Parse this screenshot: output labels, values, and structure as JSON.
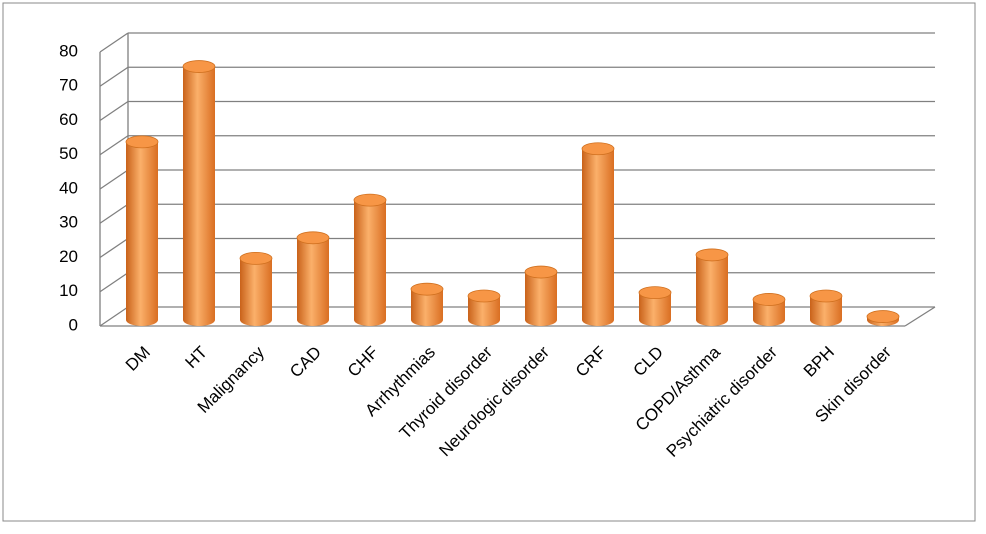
{
  "chart_data": {
    "type": "bar",
    "categories": [
      "DM",
      "HT",
      "Malignancy",
      "CAD",
      "CHF",
      "Arrhythmias",
      "Thyroid disorder",
      "Neurologic disorder",
      "CRF",
      "CLD",
      "COPD/Asthma",
      "Psychiatric disorder",
      "BPH",
      "Skin disorder"
    ],
    "values": [
      52,
      74,
      18,
      24,
      35,
      9,
      7,
      14,
      50,
      8,
      19,
      6,
      7,
      1
    ],
    "color": "#f79646",
    "ylim": [
      0,
      80
    ],
    "yticks": [
      0,
      10,
      20,
      30,
      40,
      50,
      60,
      70,
      80
    ],
    "grid": true
  }
}
